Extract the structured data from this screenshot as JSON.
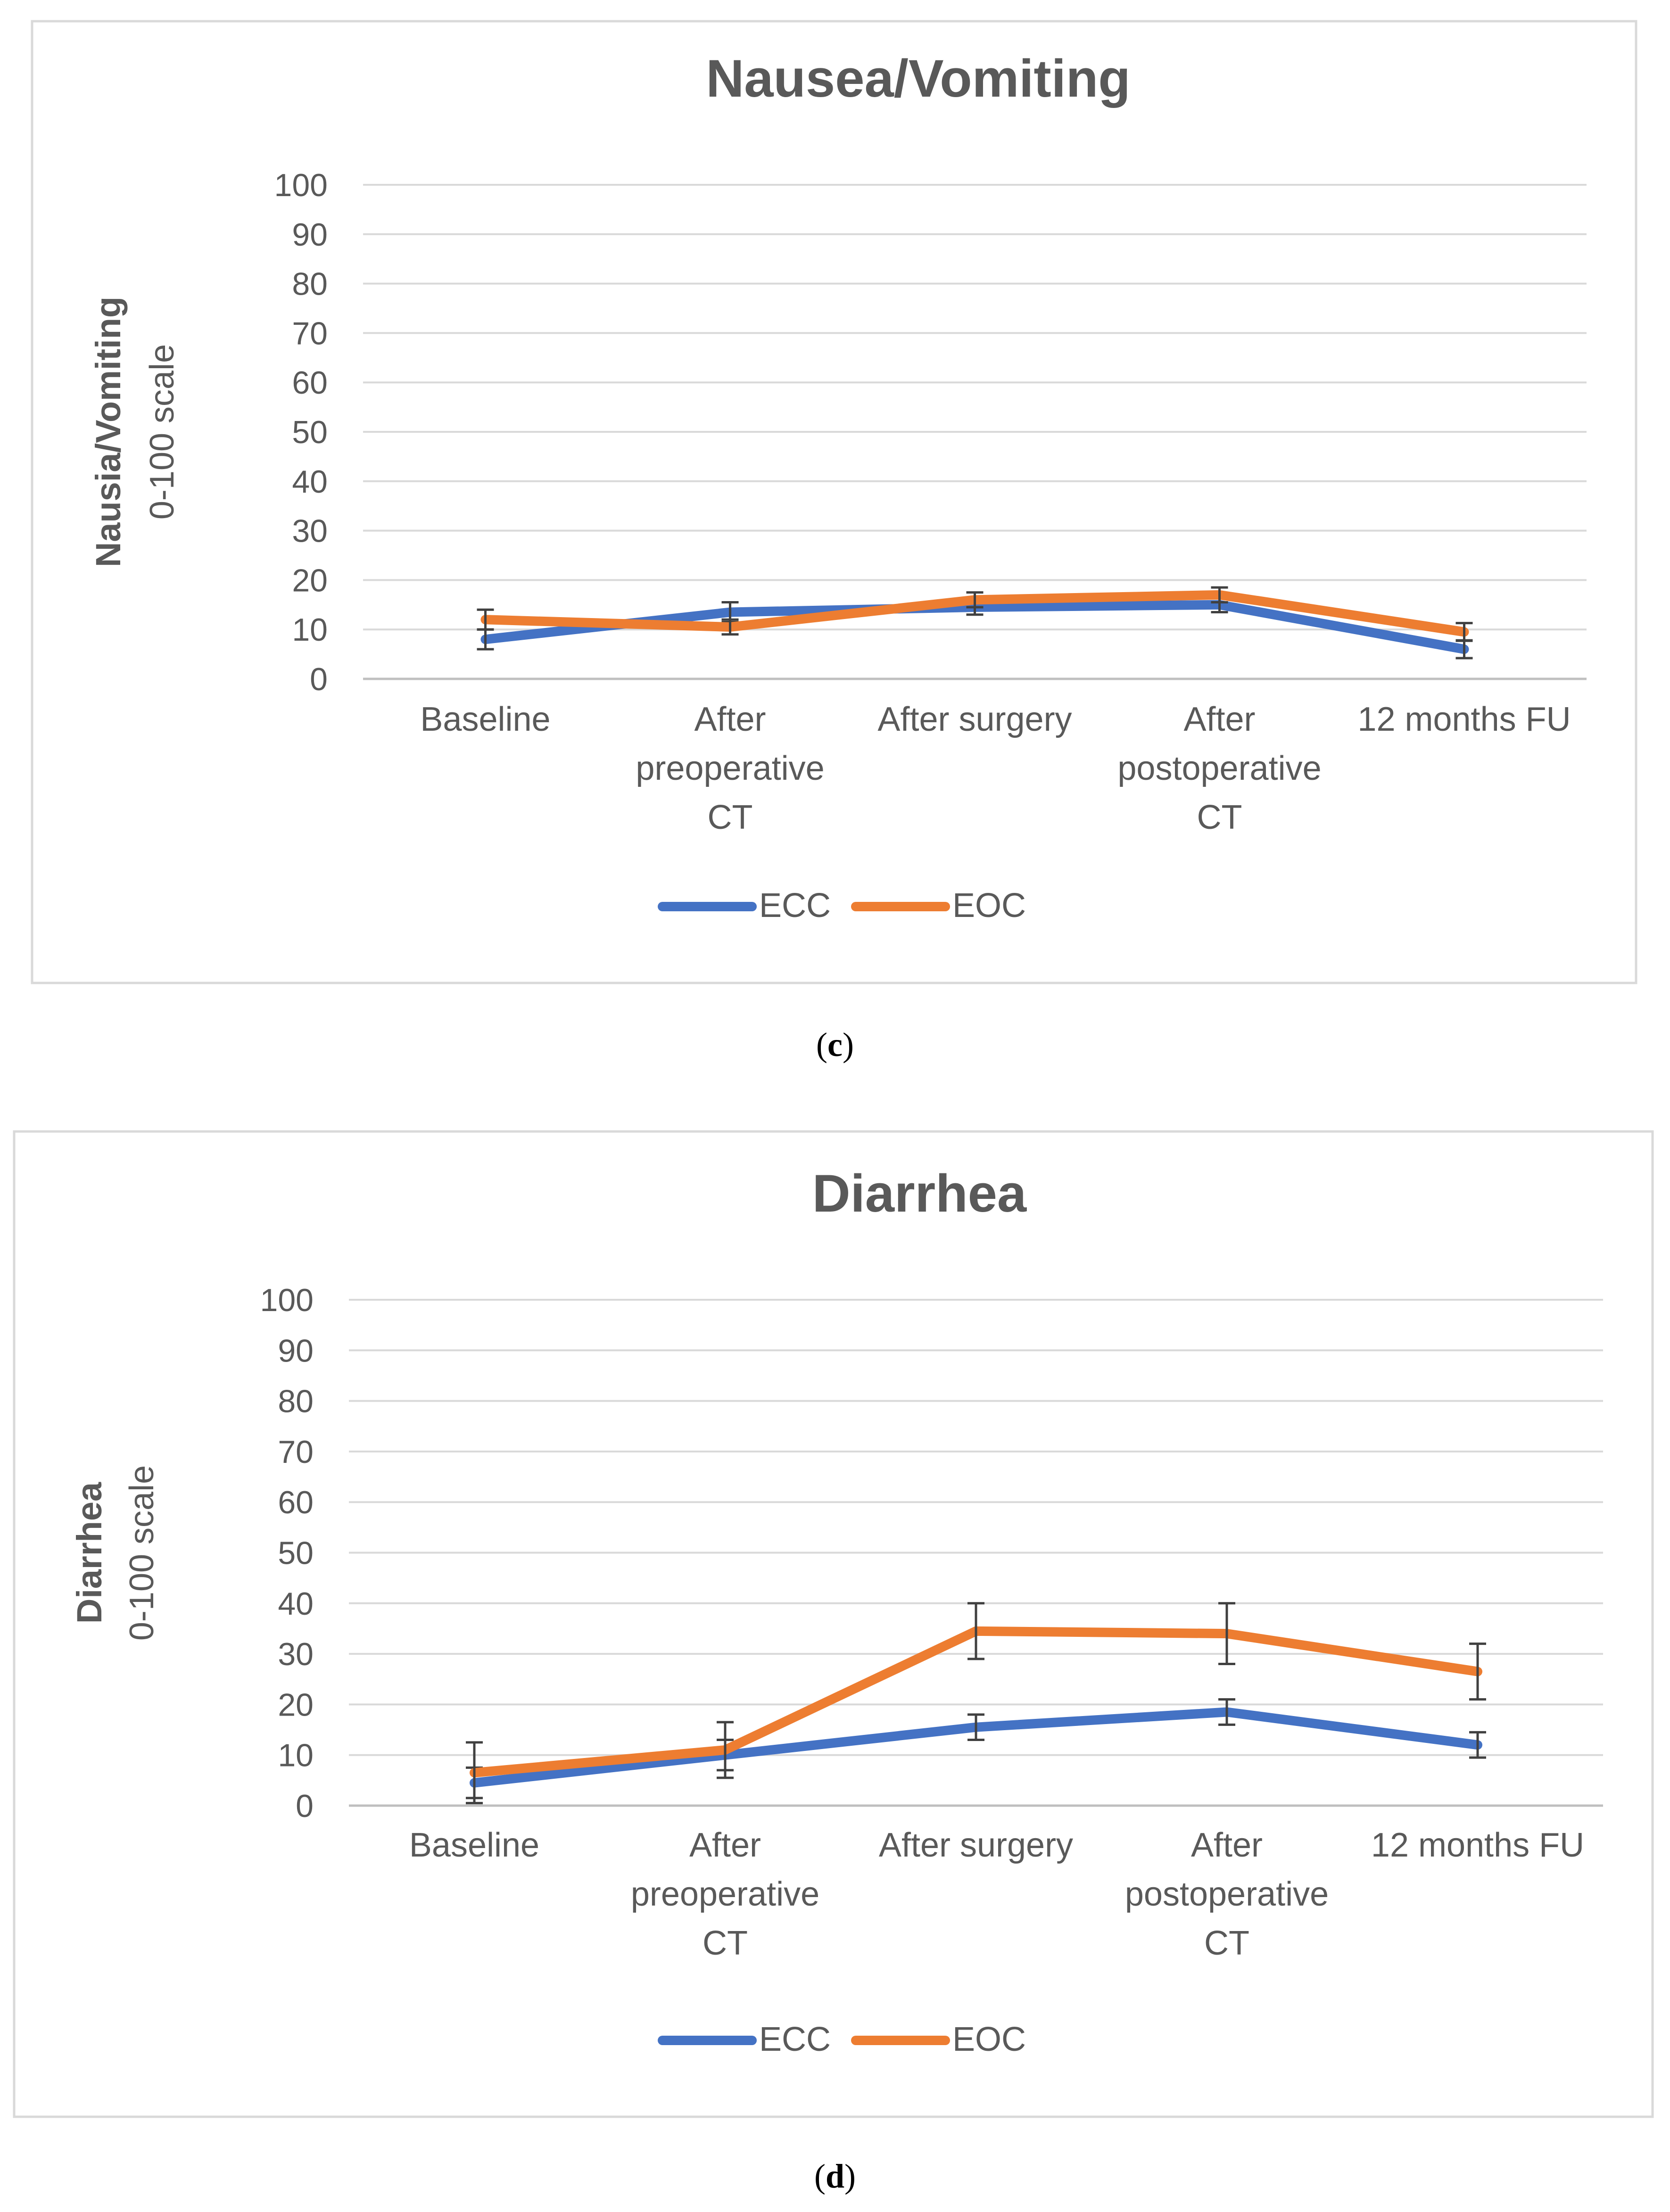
{
  "panels": [
    {
      "caption_label": "c",
      "chart_data": {
        "type": "line",
        "title": "Nausea/Vomiting",
        "ylabel_line1": "Nausia/Vomiting",
        "ylabel_line2": "0-100 scale",
        "xlabel": "",
        "categories": [
          [
            "Baseline"
          ],
          [
            "After",
            "preoperative",
            "CT"
          ],
          [
            "After surgery"
          ],
          [
            "After",
            "postoperative",
            "CT"
          ],
          [
            "12 months FU"
          ]
        ],
        "ylim": [
          0,
          100
        ],
        "yticks": [
          0,
          10,
          20,
          30,
          40,
          50,
          60,
          70,
          80,
          90,
          100
        ],
        "grid": true,
        "legend_position": "bottom",
        "series": [
          {
            "name": "ECC",
            "color": "#4472C4",
            "values": [
              8,
              13.5,
              14.5,
              15,
              6
            ],
            "error": [
              2,
              2,
              1.5,
              1.5,
              1.8
            ]
          },
          {
            "name": "EOC",
            "color": "#ED7D31",
            "values": [
              12,
              10.5,
              16,
              17,
              9.5
            ],
            "error": [
              2,
              1.5,
              1.5,
              1.5,
              1.8
            ]
          }
        ]
      }
    },
    {
      "caption_label": "d",
      "chart_data": {
        "type": "line",
        "title": "Diarrhea",
        "ylabel_line1": "Diarrhea",
        "ylabel_line2": "0-100 scale",
        "xlabel": "",
        "categories": [
          [
            "Baseline"
          ],
          [
            "After",
            "preoperative",
            "CT"
          ],
          [
            "After surgery"
          ],
          [
            "After",
            "postoperative",
            "CT"
          ],
          [
            "12 months FU"
          ]
        ],
        "ylim": [
          0,
          100
        ],
        "yticks": [
          0,
          10,
          20,
          30,
          40,
          50,
          60,
          70,
          80,
          90,
          100
        ],
        "grid": true,
        "legend_position": "bottom",
        "series": [
          {
            "name": "ECC",
            "color": "#4472C4",
            "values": [
              4.5,
              10,
              15.5,
              18.5,
              12
            ],
            "error": [
              3,
              3,
              2.5,
              2.5,
              2.5
            ]
          },
          {
            "name": "EOC",
            "color": "#ED7D31",
            "values": [
              6.5,
              11,
              34.5,
              34,
              26.5
            ],
            "error": [
              6,
              5.5,
              5.5,
              6,
              5.5
            ]
          }
        ]
      }
    }
  ]
}
